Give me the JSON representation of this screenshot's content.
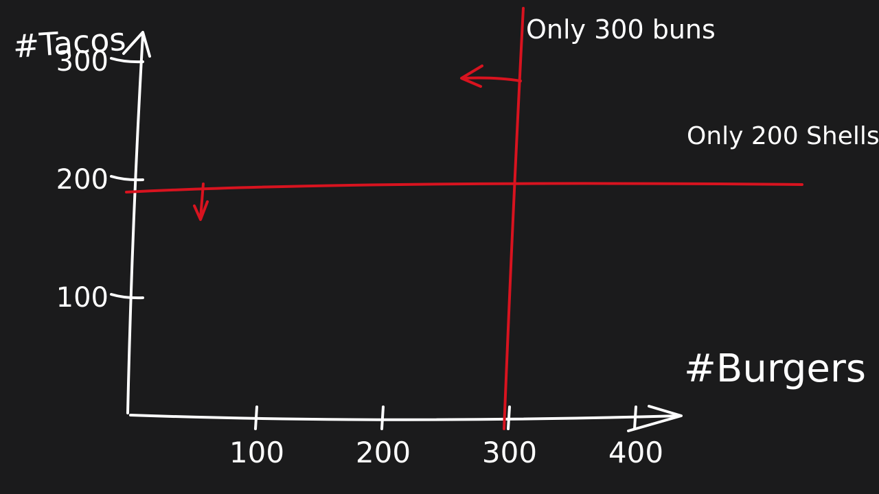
{
  "chart_data": {
    "type": "line",
    "title": "",
    "xlabel": "#Burgers",
    "ylabel": "#Tacos",
    "xlim": [
      0,
      450
    ],
    "ylim": [
      0,
      320
    ],
    "x_ticks": [
      {
        "value": 100,
        "label": "100"
      },
      {
        "value": 200,
        "label": "200"
      },
      {
        "value": 300,
        "label": "300"
      },
      {
        "value": 400,
        "label": "400"
      }
    ],
    "y_ticks": [
      {
        "value": 100,
        "label": "100"
      },
      {
        "value": 200,
        "label": "200"
      },
      {
        "value": 300,
        "label": "300"
      }
    ],
    "constraints": [
      {
        "orientation": "vertical",
        "value": 300,
        "label": "Only 300 buns",
        "arrow_direction": "left",
        "color": "#d8131f"
      },
      {
        "orientation": "horizontal",
        "value": 200,
        "label": "Only 200 Shells",
        "arrow_direction": "down",
        "color": "#d8131f"
      }
    ],
    "axis_color": "#ffffff",
    "background": "#1b1b1c",
    "grid": false,
    "style": "hand-drawn"
  }
}
